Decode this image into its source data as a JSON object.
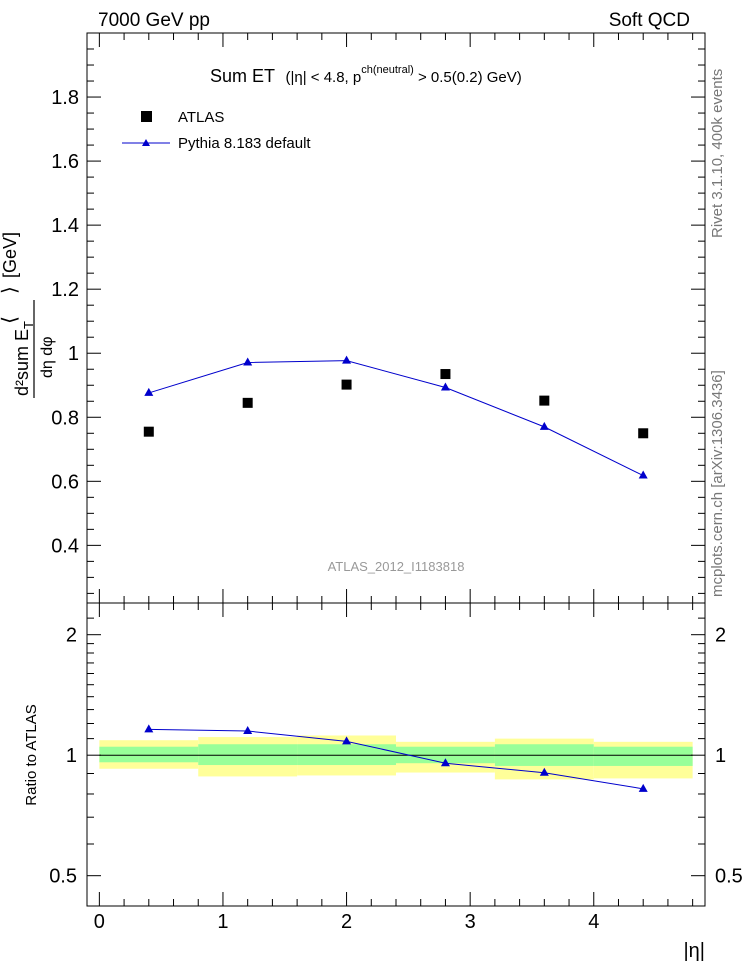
{
  "header": {
    "left": "7000 GeV pp",
    "right": "Soft QCD"
  },
  "plot_title": {
    "main": "Sum ET",
    "cut_a": "(|η| < 4.8, p",
    "cut_sup": "ch(neutral)",
    "cut_b": " > 0.5(0.2) GeV)"
  },
  "side_text": {
    "rivet": "Rivet 3.1.10,  400k events",
    "source": "mcplots.cern.ch [arXiv:1306.3436]"
  },
  "watermark": "ATLAS_2012_I1183818",
  "chart_data": [
    {
      "type": "scatter",
      "title": "Sum ET",
      "ylabel": "⟨ d²sum E_T / dη dφ ⟩ [GeV]",
      "ylabel_parts": {
        "frac_top": "d²sum E",
        "frac_sub": "T",
        "frac_bottom": "dη dφ",
        "unit": "[GeV]"
      },
      "xlabel": "|η|",
      "xlim": [
        -0.1,
        4.9
      ],
      "ylim": [
        0.22,
        2.0
      ],
      "yticks": [
        "0.4",
        "0.6",
        "0.8",
        "1",
        "1.2",
        "1.4",
        "1.6",
        "1.8"
      ],
      "series": [
        {
          "name": "ATLAS",
          "marker": "square",
          "color": "#000000",
          "x": [
            0.4,
            1.2,
            2.0,
            2.8,
            3.6,
            4.4
          ],
          "y": [
            0.755,
            0.845,
            0.902,
            0.935,
            0.852,
            0.75
          ]
        },
        {
          "name": "Pythia 8.183 default",
          "marker": "triangle",
          "color": "#0000cc",
          "x": [
            0.4,
            1.2,
            2.0,
            2.8,
            3.6,
            4.4
          ],
          "y": [
            0.876,
            0.971,
            0.977,
            0.893,
            0.77,
            0.618
          ]
        }
      ],
      "legend": "top-left"
    },
    {
      "type": "line",
      "ylabel": "Ratio to ATLAS",
      "xlabel": "|η|",
      "xlim": [
        -0.1,
        4.9
      ],
      "ylim": [
        0.42,
        2.4
      ],
      "yscale": "log",
      "yticks": [
        "0.5",
        "1",
        "2"
      ],
      "xticks": [
        "0",
        "1",
        "2",
        "3",
        "4"
      ],
      "bins": [
        [
          0.0,
          0.8
        ],
        [
          0.8,
          1.6
        ],
        [
          1.6,
          2.4
        ],
        [
          2.4,
          3.2
        ],
        [
          3.2,
          4.0
        ],
        [
          4.0,
          4.8
        ]
      ],
      "band_inner": [
        [
          0.96,
          1.05
        ],
        [
          0.945,
          1.065
        ],
        [
          0.945,
          1.065
        ],
        [
          0.955,
          1.05
        ],
        [
          0.94,
          1.065
        ],
        [
          0.94,
          1.05
        ]
      ],
      "band_outer": [
        [
          0.925,
          1.09
        ],
        [
          0.885,
          1.11
        ],
        [
          0.89,
          1.12
        ],
        [
          0.905,
          1.08
        ],
        [
          0.87,
          1.1
        ],
        [
          0.875,
          1.08
        ]
      ],
      "band_colors": {
        "inner": "#99ff99",
        "outer": "#ffff99"
      },
      "series": [
        {
          "name": "Pythia 8.183 default",
          "color": "#0000cc",
          "x": [
            0.4,
            1.2,
            2.0,
            2.8,
            3.6,
            4.4
          ],
          "y": [
            1.16,
            1.149,
            1.083,
            0.955,
            0.904,
            0.824
          ]
        }
      ]
    }
  ]
}
